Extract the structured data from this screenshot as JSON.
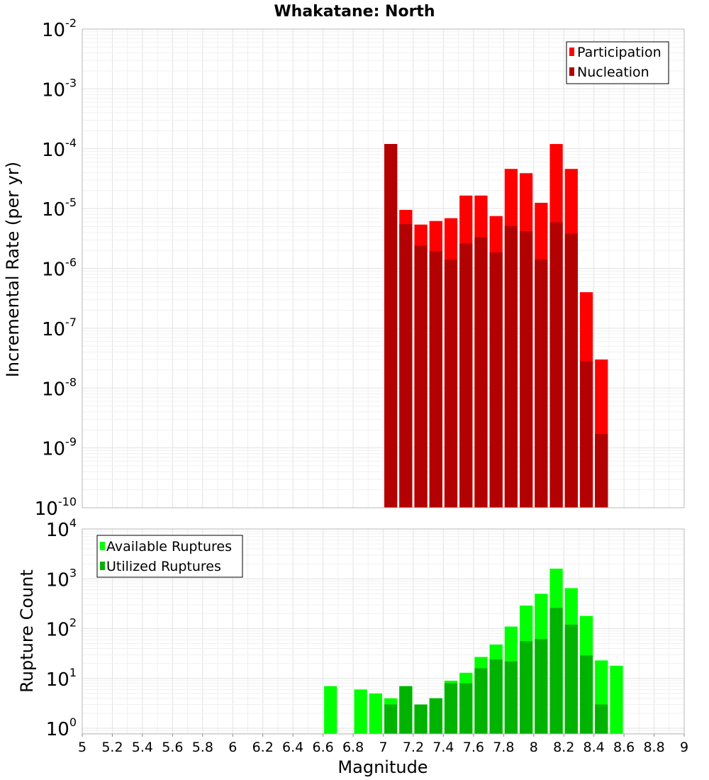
{
  "chart_data": [
    {
      "type": "bar",
      "title": "Whakatane: North",
      "xlabel": "",
      "ylabel": "Incremental Rate (per yr)",
      "yscale": "log",
      "xlim": [
        5,
        9
      ],
      "ylim": [
        1e-10,
        0.01
      ],
      "y_ticks": [
        {
          "base": "10",
          "exp": "-10"
        },
        {
          "base": "10",
          "exp": "-9"
        },
        {
          "base": "10",
          "exp": "-8"
        },
        {
          "base": "10",
          "exp": "-7"
        },
        {
          "base": "10",
          "exp": "-6"
        },
        {
          "base": "10",
          "exp": "-5"
        },
        {
          "base": "10",
          "exp": "-4"
        },
        {
          "base": "10",
          "exp": "-3"
        },
        {
          "base": "10",
          "exp": "-2"
        }
      ],
      "grid": true,
      "legend_position": "top-right",
      "bin_width": 0.1,
      "x": [
        7.05,
        7.15,
        7.25,
        7.35,
        7.45,
        7.55,
        7.65,
        7.75,
        7.85,
        7.95,
        8.05,
        8.15,
        8.25,
        8.35,
        8.45
      ],
      "series": [
        {
          "name": "Participation",
          "color": "#ff0000",
          "values": [
            0.00012,
            9.5e-06,
            5.4e-06,
            6.2e-06,
            6.9e-06,
            1.65e-05,
            1.65e-05,
            7.5e-06,
            4.6e-05,
            3.9e-05,
            1.25e-05,
            0.00012,
            4.6e-05,
            4e-07,
            3e-08
          ]
        },
        {
          "name": "Nucleation",
          "color": "#b30000",
          "values": [
            0.00012,
            5.5e-06,
            2.4e-06,
            1.95e-06,
            1.4e-06,
            2.6e-06,
            3.3e-06,
            1.85e-06,
            5.1e-06,
            4.2e-06,
            1.4e-06,
            5.9e-06,
            3.8e-06,
            2.8e-08,
            1.7e-09
          ]
        }
      ]
    },
    {
      "type": "bar",
      "title": "",
      "xlabel": "Magnitude",
      "ylabel": "Rupture Count",
      "yscale": "log",
      "xlim": [
        5,
        9
      ],
      "ylim": [
        0.77,
        10000
      ],
      "y_ticks": [
        {
          "base": "10",
          "exp": "0"
        },
        {
          "base": "10",
          "exp": "1"
        },
        {
          "base": "10",
          "exp": "2"
        },
        {
          "base": "10",
          "exp": "3"
        },
        {
          "base": "10",
          "exp": "4"
        }
      ],
      "x_ticks": [
        "5",
        "5.2",
        "5.4",
        "5.6",
        "5.8",
        "6",
        "6.2",
        "6.4",
        "6.6",
        "6.8",
        "7",
        "7.2",
        "7.4",
        "7.6",
        "7.8",
        "8",
        "8.2",
        "8.4",
        "8.6",
        "8.8",
        "9"
      ],
      "grid": true,
      "legend_position": "top-left",
      "bin_width": 0.1,
      "x": [
        6.65,
        6.75,
        6.85,
        6.95,
        7.05,
        7.15,
        7.25,
        7.35,
        7.45,
        7.55,
        7.65,
        7.75,
        7.85,
        7.95,
        8.05,
        8.15,
        8.25,
        8.35,
        8.45,
        8.55
      ],
      "series": [
        {
          "name": "Available Ruptures",
          "color": "#00ff00",
          "values": [
            7,
            0,
            6,
            5,
            4,
            7,
            3,
            4,
            9,
            13,
            27,
            48,
            110,
            290,
            500,
            1600,
            650,
            180,
            23,
            18
          ]
        },
        {
          "name": "Utilized Ruptures",
          "color": "#00b300",
          "values": [
            0,
            0,
            0,
            0,
            3,
            7,
            3,
            4,
            8,
            8,
            16,
            24,
            22,
            56,
            62,
            260,
            120,
            29,
            3,
            0
          ]
        }
      ]
    }
  ]
}
